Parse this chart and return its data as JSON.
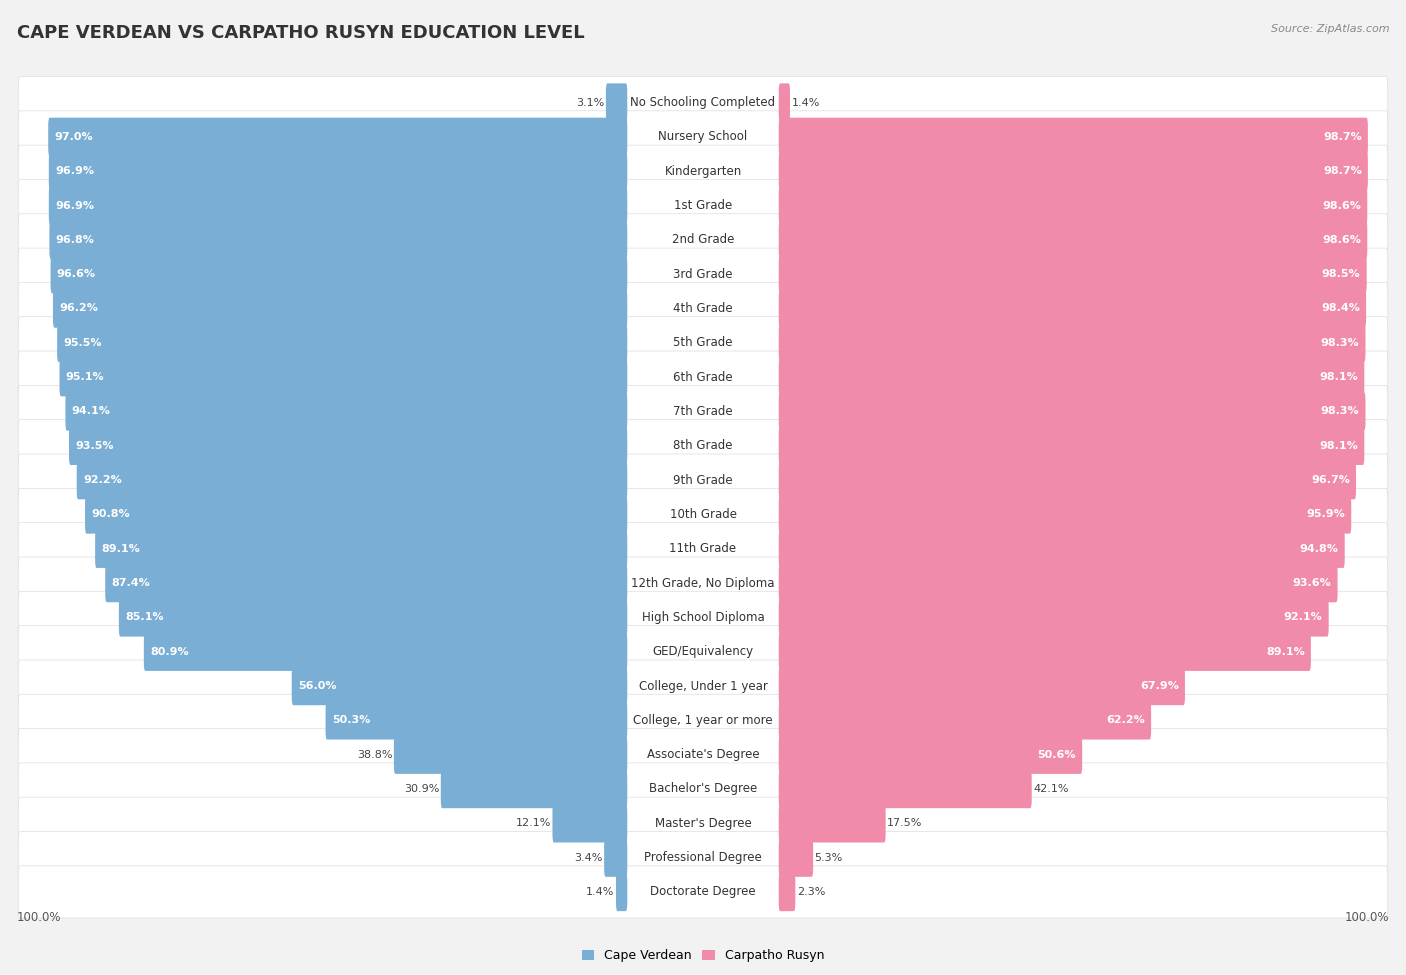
{
  "title": "Cape Verdean vs Carpatho Rusyn Education Level",
  "title_display": "CAPE VERDEAN VS CARPATHO RUSYN EDUCATION LEVEL",
  "source": "Source: ZipAtlas.com",
  "categories": [
    "No Schooling Completed",
    "Nursery School",
    "Kindergarten",
    "1st Grade",
    "2nd Grade",
    "3rd Grade",
    "4th Grade",
    "5th Grade",
    "6th Grade",
    "7th Grade",
    "8th Grade",
    "9th Grade",
    "10th Grade",
    "11th Grade",
    "12th Grade, No Diploma",
    "High School Diploma",
    "GED/Equivalency",
    "College, Under 1 year",
    "College, 1 year or more",
    "Associate's Degree",
    "Bachelor's Degree",
    "Master's Degree",
    "Professional Degree",
    "Doctorate Degree"
  ],
  "cape_verdean": [
    3.1,
    97.0,
    96.9,
    96.9,
    96.8,
    96.6,
    96.2,
    95.5,
    95.1,
    94.1,
    93.5,
    92.2,
    90.8,
    89.1,
    87.4,
    85.1,
    80.9,
    56.0,
    50.3,
    38.8,
    30.9,
    12.1,
    3.4,
    1.4
  ],
  "carpatho_rusyn": [
    1.4,
    98.7,
    98.7,
    98.6,
    98.6,
    98.5,
    98.4,
    98.3,
    98.1,
    98.3,
    98.1,
    96.7,
    95.9,
    94.8,
    93.6,
    92.1,
    89.1,
    67.9,
    62.2,
    50.6,
    42.1,
    17.5,
    5.3,
    2.3
  ],
  "blue_color": "#7aaed4",
  "pink_color": "#f08caa",
  "bg_color": "#f2f2f2",
  "bar_bg_color": "#ffffff",
  "row_border_color": "#dddddd",
  "title_fontsize": 13,
  "label_fontsize": 8.5,
  "value_fontsize": 8,
  "legend_fontsize": 9,
  "max_val": 100.0
}
